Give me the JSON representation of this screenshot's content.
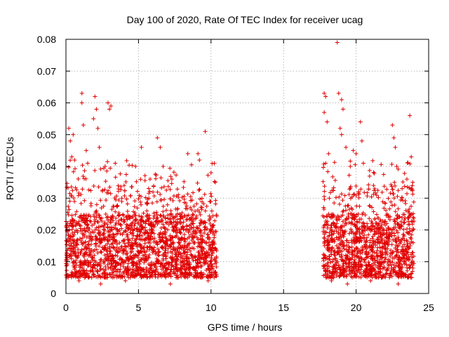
{
  "chart_data": {
    "type": "scatter",
    "title": "Day 100 of 2020, Rate Of TEC Index for receiver ucag",
    "xlabel": "GPS time / hours",
    "ylabel": "ROTI / TECUs",
    "xlim": [
      0,
      25
    ],
    "ylim": [
      0,
      0.08
    ],
    "xticks": [
      0,
      5,
      10,
      15,
      20,
      25
    ],
    "xtick_labels": [
      "0",
      "5",
      "10",
      "15",
      "20",
      "25"
    ],
    "yticks": [
      0,
      0.01,
      0.02,
      0.03,
      0.04,
      0.05,
      0.06,
      0.07,
      0.08
    ],
    "ytick_labels": [
      "0",
      "0.01",
      "0.02",
      "0.03",
      "0.04",
      "0.05",
      "0.06",
      "0.07",
      "0.08"
    ],
    "grid": true,
    "marker": "+",
    "colors": {
      "points": "#e00000",
      "grid": "#a0a0a0",
      "axes": "#000000"
    },
    "series": [
      {
        "x_range": [
          0.0,
          10.4
        ],
        "typical_band": [
          0.005,
          0.025
        ],
        "points": [
          [
            0.2,
            0.052
          ],
          [
            0.3,
            0.048
          ],
          [
            0.4,
            0.043
          ],
          [
            0.5,
            0.05
          ],
          [
            0.6,
            0.042
          ],
          [
            1.1,
            0.063
          ],
          [
            1.1,
            0.06
          ],
          [
            1.2,
            0.053
          ],
          [
            1.4,
            0.045
          ],
          [
            1.5,
            0.041
          ],
          [
            1.9,
            0.055
          ],
          [
            2.0,
            0.062
          ],
          [
            2.1,
            0.058
          ],
          [
            2.2,
            0.052
          ],
          [
            2.3,
            0.046
          ],
          [
            2.9,
            0.06
          ],
          [
            3.0,
            0.058
          ],
          [
            3.1,
            0.059
          ],
          [
            2.7,
            0.04
          ],
          [
            3.4,
            0.041
          ],
          [
            4.8,
            0.04
          ],
          [
            5.2,
            0.046
          ],
          [
            5.8,
            0.036
          ],
          [
            6.3,
            0.049
          ],
          [
            6.5,
            0.046
          ],
          [
            6.7,
            0.04
          ],
          [
            7.3,
            0.036
          ],
          [
            8.4,
            0.044
          ],
          [
            9.1,
            0.044
          ],
          [
            9.2,
            0.042
          ],
          [
            9.6,
            0.051
          ],
          [
            10.0,
            0.038
          ],
          [
            10.3,
            0.035
          ],
          [
            0.9,
            0.004
          ],
          [
            2.4,
            0.003
          ],
          [
            4.1,
            0.004
          ],
          [
            7.2,
            0.003
          ],
          [
            9.8,
            0.004
          ]
        ]
      },
      {
        "x_range": [
          17.7,
          24.0
        ],
        "typical_band": [
          0.005,
          0.025
        ],
        "points": [
          [
            17.8,
            0.063
          ],
          [
            17.9,
            0.062
          ],
          [
            17.8,
            0.057
          ],
          [
            18.0,
            0.054
          ],
          [
            18.1,
            0.044
          ],
          [
            17.9,
            0.041
          ],
          [
            18.7,
            0.079
          ],
          [
            18.8,
            0.063
          ],
          [
            19.0,
            0.061
          ],
          [
            19.1,
            0.058
          ],
          [
            18.9,
            0.052
          ],
          [
            19.0,
            0.05
          ],
          [
            19.3,
            0.046
          ],
          [
            19.6,
            0.04
          ],
          [
            19.8,
            0.045
          ],
          [
            20.0,
            0.044
          ],
          [
            20.3,
            0.054
          ],
          [
            20.4,
            0.048
          ],
          [
            20.5,
            0.041
          ],
          [
            21.2,
            0.034
          ],
          [
            22.5,
            0.053
          ],
          [
            22.6,
            0.049
          ],
          [
            22.7,
            0.046
          ],
          [
            22.8,
            0.04
          ],
          [
            23.5,
            0.036
          ],
          [
            23.7,
            0.056
          ],
          [
            23.8,
            0.043
          ],
          [
            23.9,
            0.035
          ],
          [
            18.3,
            0.004
          ],
          [
            19.4,
            0.003
          ],
          [
            21.0,
            0.004
          ],
          [
            22.9,
            0.003
          ],
          [
            23.6,
            0.005
          ]
        ]
      }
    ]
  }
}
